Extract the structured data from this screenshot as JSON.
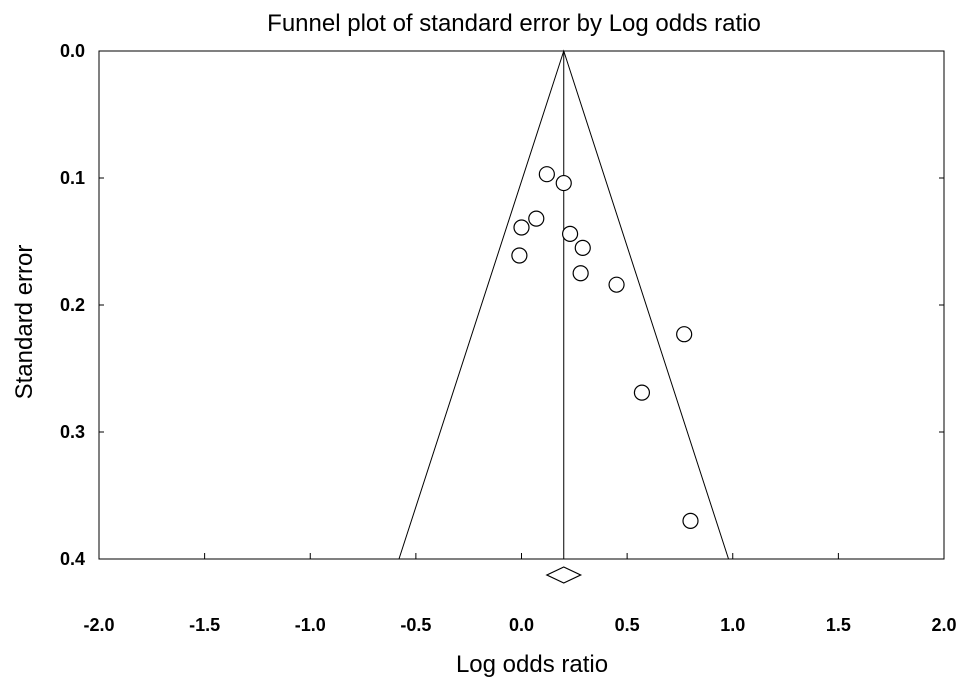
{
  "chart_data": {
    "type": "scatter",
    "title": "Funnel plot of standard error by Log odds ratio",
    "xlabel": "Log odds ratio",
    "ylabel": "Standard error",
    "xlim": [
      -2.0,
      2.0
    ],
    "ylim": [
      0.0,
      0.4
    ],
    "y_inverted": true,
    "x_ticks": [
      "-2.0",
      "-1.5",
      "-1.0",
      "-0.5",
      "0.0",
      "0.5",
      "1.0",
      "1.5",
      "2.0"
    ],
    "y_ticks": [
      "0.0",
      "0.1",
      "0.2",
      "0.3",
      "0.4"
    ],
    "grid": false,
    "summary_effect": 0.2,
    "funnel": {
      "apex": [
        0.2,
        0.0
      ],
      "base_left": [
        -0.58,
        0.4
      ],
      "base_right": [
        0.98,
        0.4
      ]
    },
    "points": [
      {
        "x": 0.12,
        "y": 0.097
      },
      {
        "x": 0.2,
        "y": 0.104
      },
      {
        "x": 0.07,
        "y": 0.132
      },
      {
        "x": 0.0,
        "y": 0.139
      },
      {
        "x": 0.23,
        "y": 0.144
      },
      {
        "x": 0.29,
        "y": 0.155
      },
      {
        "x": -0.01,
        "y": 0.161
      },
      {
        "x": 0.28,
        "y": 0.175
      },
      {
        "x": 0.45,
        "y": 0.184
      },
      {
        "x": 0.77,
        "y": 0.223
      },
      {
        "x": 0.57,
        "y": 0.269
      },
      {
        "x": 0.8,
        "y": 0.37
      }
    ],
    "diamond": {
      "center": 0.2,
      "lower": 0.12,
      "upper": 0.28
    }
  }
}
